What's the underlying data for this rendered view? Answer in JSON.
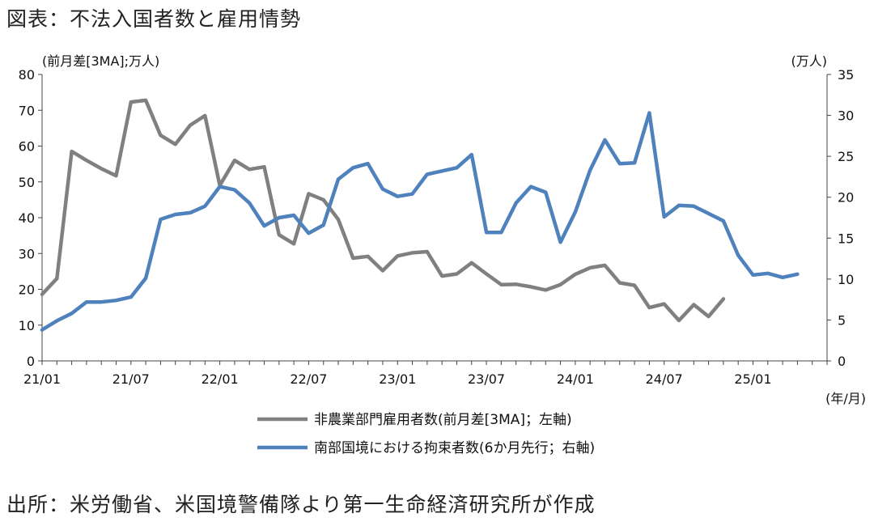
{
  "page": {
    "title": "図表：不法入国者数と雇用情勢",
    "source": "出所：米労働省、米国境警備隊より第一生命経済研究所が作成"
  },
  "chart_data": {
    "type": "line",
    "x_tick_labels": [
      "21/01",
      "21/07",
      "22/01",
      "22/07",
      "23/01",
      "23/07",
      "24/01",
      "24/07",
      "25/01"
    ],
    "x_unit_label": "(年/月)",
    "y_left": {
      "unit_label": "(前月差[3MA];万人)",
      "range": [
        0,
        80
      ],
      "ticks": [
        0,
        10,
        20,
        30,
        40,
        50,
        60,
        70,
        80
      ]
    },
    "y_right": {
      "unit_label": "(万人)",
      "range": [
        0,
        35
      ],
      "ticks": [
        0,
        5,
        10,
        15,
        20,
        25,
        30,
        35
      ]
    },
    "grid": false,
    "legend_placement": "bottom-center",
    "x_months": [
      "2021-01",
      "2021-02",
      "2021-03",
      "2021-04",
      "2021-05",
      "2021-06",
      "2021-07",
      "2021-08",
      "2021-09",
      "2021-10",
      "2021-11",
      "2021-12",
      "2022-01",
      "2022-02",
      "2022-03",
      "2022-04",
      "2022-05",
      "2022-06",
      "2022-07",
      "2022-08",
      "2022-09",
      "2022-10",
      "2022-11",
      "2022-12",
      "2023-01",
      "2023-02",
      "2023-03",
      "2023-04",
      "2023-05",
      "2023-06",
      "2023-07",
      "2023-08",
      "2023-09",
      "2023-10",
      "2023-11",
      "2023-12",
      "2024-01",
      "2024-02",
      "2024-03",
      "2024-04",
      "2024-05",
      "2024-06",
      "2024-07",
      "2024-08",
      "2024-09",
      "2024-10",
      "2024-11",
      "2024-12",
      "2025-01",
      "2025-02",
      "2025-03",
      "2025-04",
      "2025-05"
    ],
    "series": [
      {
        "name": "非農業部門雇用者数(前月差[3MA]；左軸)",
        "axis": "left",
        "color": "#808080",
        "values": [
          18.6,
          23.0,
          58.5,
          56.0,
          53.7,
          51.7,
          72.3,
          72.8,
          63.0,
          60.5,
          65.8,
          68.5,
          49.0,
          56.0,
          53.5,
          54.2,
          35.2,
          32.7,
          46.7,
          45.0,
          39.5,
          28.7,
          29.2,
          25.2,
          29.3,
          30.2,
          30.5,
          23.7,
          24.3,
          27.4,
          24.3,
          21.3,
          21.4,
          20.7,
          19.8,
          21.3,
          24.2,
          26.0,
          26.7,
          21.8,
          21.1,
          14.9,
          15.9,
          11.3,
          15.7,
          12.4,
          17.3,
          null,
          null,
          null,
          null,
          null,
          null
        ]
      },
      {
        "name": "南部国境における拘束者数(6か月先行；右軸)",
        "axis": "right",
        "color": "#4f81bd",
        "values": [
          3.8,
          4.9,
          5.8,
          7.2,
          7.2,
          7.4,
          7.8,
          10.1,
          17.3,
          17.9,
          18.1,
          18.9,
          21.3,
          20.9,
          19.3,
          16.5,
          17.5,
          17.8,
          15.6,
          16.6,
          22.2,
          23.6,
          24.1,
          21.0,
          20.1,
          20.4,
          22.8,
          23.2,
          23.6,
          25.2,
          15.7,
          15.7,
          19.3,
          21.3,
          20.6,
          14.5,
          18.2,
          23.3,
          27.0,
          24.1,
          24.2,
          30.3,
          17.6,
          19.0,
          18.9,
          18.0,
          17.1,
          12.9,
          10.5,
          10.7,
          10.2,
          10.6,
          null
        ]
      }
    ]
  }
}
